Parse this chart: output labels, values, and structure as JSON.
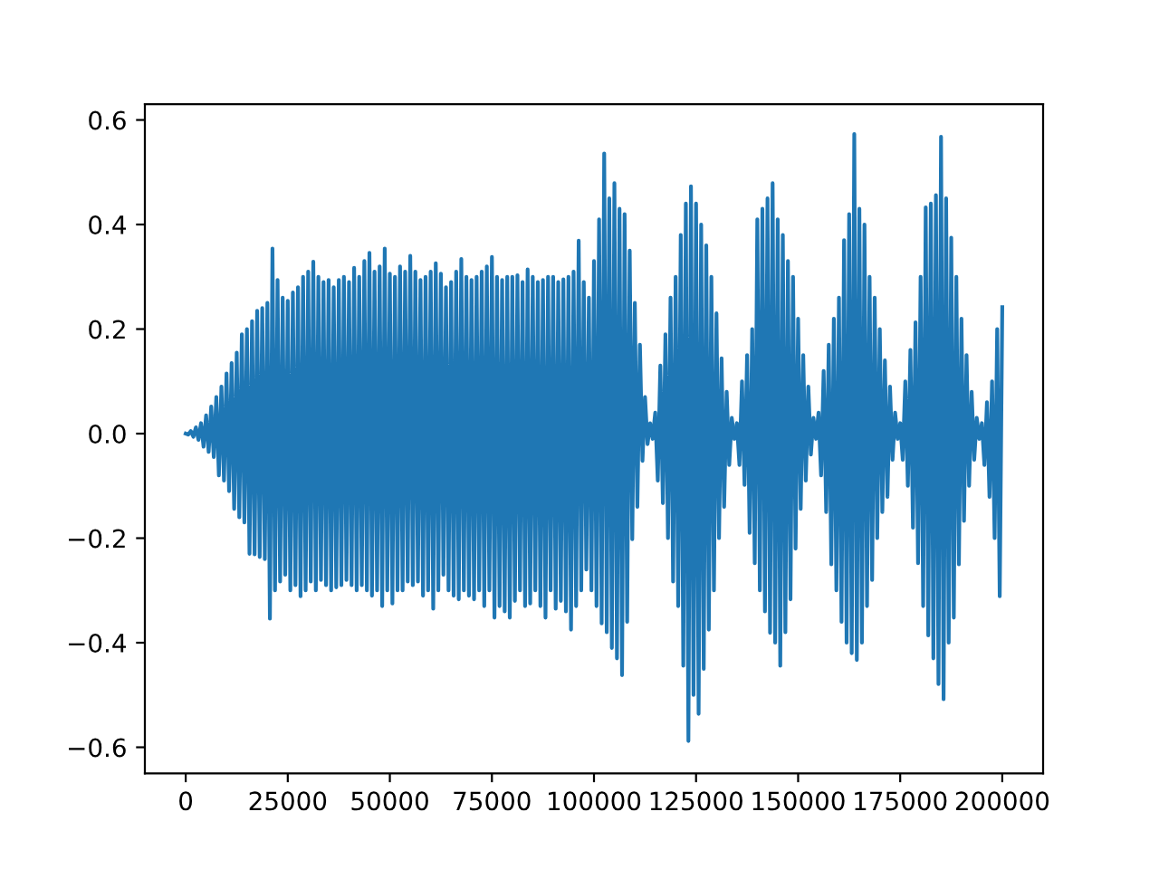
{
  "chart_data": {
    "type": "line",
    "x": [
      0,
      625,
      1250,
      1875,
      2500,
      3125,
      3750,
      4375,
      5000,
      5625,
      6250,
      6875,
      7500,
      8125,
      8750,
      9375,
      10000,
      10625,
      11250,
      11875,
      12500,
      13125,
      13750,
      14375,
      15000,
      15625,
      16250,
      16875,
      17500,
      18125,
      18750,
      19375,
      20000,
      20625,
      21250,
      21875,
      22500,
      23125,
      23750,
      24375,
      25000,
      25625,
      26250,
      26875,
      27500,
      28125,
      28750,
      29375,
      30000,
      30625,
      31250,
      31875,
      32500,
      33125,
      33750,
      34375,
      35000,
      35625,
      36250,
      36875,
      37500,
      38125,
      38750,
      39375,
      40000,
      40625,
      41250,
      41875,
      42500,
      43125,
      43750,
      44375,
      45000,
      45625,
      46250,
      46875,
      47500,
      48125,
      48750,
      49375,
      50000,
      50625,
      51250,
      51875,
      52500,
      53125,
      53750,
      54375,
      55000,
      55625,
      56250,
      56875,
      57500,
      58125,
      58750,
      59375,
      60000,
      60625,
      61250,
      61875,
      62500,
      63125,
      63750,
      64375,
      65000,
      65625,
      66250,
      66875,
      67500,
      68125,
      68750,
      69375,
      70000,
      70625,
      71250,
      71875,
      72500,
      73125,
      73750,
      74375,
      75000,
      75625,
      76250,
      76875,
      77500,
      78125,
      78750,
      79375,
      80000,
      80625,
      81250,
      81875,
      82500,
      83125,
      83750,
      84375,
      85000,
      85625,
      86250,
      86875,
      87500,
      88125,
      88750,
      89375,
      90000,
      90625,
      91250,
      91875,
      92500,
      93125,
      93750,
      94375,
      95000,
      95625,
      96250,
      96875,
      97500,
      98125,
      98750,
      99375,
      100000,
      100625,
      101250,
      101875,
      102500,
      103125,
      103750,
      104375,
      105000,
      105625,
      106250,
      106875,
      107500,
      108125,
      108750,
      109375,
      110000,
      110625,
      111250,
      111875,
      112500,
      113125,
      113750,
      114375,
      115000,
      115625,
      116250,
      116875,
      117500,
      118125,
      118750,
      119375,
      120000,
      120625,
      121250,
      121875,
      122500,
      123125,
      123750,
      124375,
      125000,
      125625,
      126250,
      126875,
      127500,
      128125,
      128750,
      129375,
      130000,
      130625,
      131250,
      131875,
      132500,
      133125,
      133750,
      134375,
      135000,
      135625,
      136250,
      136875,
      137500,
      138125,
      138750,
      139375,
      140000,
      140625,
      141250,
      141875,
      142500,
      143125,
      143750,
      144375,
      145000,
      145625,
      146250,
      146875,
      147500,
      148125,
      148750,
      149375,
      150000,
      150625,
      151250,
      151875,
      152500,
      153125,
      153750,
      154375,
      155000,
      155625,
      156250,
      156875,
      157500,
      158125,
      158750,
      159375,
      160000,
      160625,
      161250,
      161875,
      162500,
      163125,
      163750,
      164375,
      165000,
      165625,
      166250,
      166875,
      167500,
      168125,
      168750,
      169375,
      170000,
      170625,
      171250,
      171875,
      172500,
      173125,
      173750,
      174375,
      175000,
      175625,
      176250,
      176875,
      177500,
      178125,
      178750,
      179375,
      180000,
      180625,
      181250,
      181875,
      182500,
      183125,
      183750,
      184375,
      185000,
      185625,
      186250,
      186875,
      187500,
      188125,
      188750,
      189375,
      190000,
      190625,
      191250,
      191875,
      192500,
      193125,
      193750,
      194375,
      195000,
      195625,
      196250,
      196875,
      197500,
      198125,
      198750,
      199375,
      200000
    ],
    "series": [
      {
        "color": "#1f77b4",
        "values": [
          0,
          -0.002,
          0.005,
          -0.006,
          0.012,
          -0.012,
          0.02,
          -0.025,
          0.035,
          -0.035,
          0.052,
          -0.045,
          0.07,
          -0.08,
          0.09,
          -0.09,
          0.115,
          -0.11,
          0.135,
          -0.144,
          0.155,
          -0.16,
          0.19,
          -0.17,
          0.2,
          -0.23,
          0.215,
          -0.231,
          0.235,
          -0.236,
          0.24,
          -0.24,
          0.25,
          -0.354,
          0.354,
          -0.3,
          0.294,
          -0.283,
          0.26,
          -0.27,
          0.254,
          -0.3,
          0.27,
          -0.29,
          0.28,
          -0.311,
          0.3,
          -0.3,
          0.31,
          -0.283,
          0.329,
          -0.3,
          0.3,
          -0.28,
          0.29,
          -0.29,
          0.294,
          -0.3,
          0.28,
          -0.294,
          0.294,
          -0.29,
          0.3,
          -0.28,
          0.29,
          -0.29,
          0.317,
          -0.3,
          0.3,
          -0.29,
          0.33,
          -0.3,
          0.346,
          -0.31,
          0.31,
          -0.3,
          0.32,
          -0.33,
          0.354,
          -0.3,
          0.306,
          -0.325,
          0.3,
          -0.3,
          0.32,
          -0.3,
          0.31,
          -0.283,
          0.34,
          -0.29,
          0.31,
          -0.283,
          0.294,
          -0.31,
          0.3,
          -0.3,
          0.31,
          -0.335,
          0.326,
          -0.3,
          0.306,
          -0.27,
          0.28,
          -0.3,
          0.29,
          -0.31,
          0.31,
          -0.317,
          0.334,
          -0.3,
          0.3,
          -0.31,
          0.294,
          -0.317,
          0.3,
          -0.3,
          0.31,
          -0.33,
          0.32,
          -0.3,
          0.338,
          -0.352,
          0.3,
          -0.33,
          0.294,
          -0.34,
          0.3,
          -0.352,
          0.3,
          -0.32,
          0.303,
          -0.3,
          0.29,
          -0.33,
          0.314,
          -0.325,
          0.3,
          -0.3,
          0.29,
          -0.33,
          0.294,
          -0.352,
          0.3,
          -0.3,
          0.3,
          -0.335,
          0.29,
          -0.32,
          0.295,
          -0.34,
          0.3,
          -0.375,
          0.31,
          -0.33,
          0.369,
          -0.3,
          0.29,
          -0.26,
          0.26,
          -0.3,
          0.33,
          -0.33,
          0.41,
          -0.363,
          0.536,
          -0.38,
          0.45,
          -0.41,
          0.479,
          -0.43,
          0.43,
          -0.462,
          0.42,
          -0.36,
          0.35,
          -0.202,
          0.25,
          -0.14,
          0.17,
          -0.052,
          0.07,
          -0.02,
          0.02,
          -0.01,
          0.04,
          -0.09,
          0.13,
          -0.133,
          0.19,
          -0.2,
          0.26,
          -0.283,
          0.3,
          -0.33,
          0.38,
          -0.444,
          0.44,
          -0.588,
          0.473,
          -0.5,
          0.44,
          -0.536,
          0.4,
          -0.45,
          0.36,
          -0.375,
          0.3,
          -0.3,
          0.23,
          -0.2,
          0.144,
          -0.14,
          0.08,
          -0.06,
          0.03,
          -0.01,
          0.02,
          -0.06,
          0.1,
          -0.098,
          0.15,
          -0.19,
          0.2,
          -0.248,
          0.41,
          -0.3,
          0.43,
          -0.34,
          0.45,
          -0.381,
          0.479,
          -0.4,
          0.41,
          -0.444,
          0.38,
          -0.38,
          0.33,
          -0.317,
          0.3,
          -0.22,
          0.22,
          -0.144,
          0.15,
          -0.09,
          0.09,
          -0.04,
          0.03,
          -0.01,
          0.04,
          -0.08,
          0.12,
          -0.15,
          0.17,
          -0.25,
          0.22,
          -0.3,
          0.26,
          -0.36,
          0.37,
          -0.4,
          0.42,
          -0.42,
          0.573,
          -0.433,
          0.43,
          -0.4,
          0.4,
          -0.33,
          0.3,
          -0.28,
          0.26,
          -0.2,
          0.2,
          -0.15,
          0.14,
          -0.121,
          0.09,
          -0.05,
          0.04,
          -0.01,
          0.02,
          -0.05,
          0.1,
          -0.1,
          0.16,
          -0.18,
          0.213,
          -0.248,
          0.3,
          -0.33,
          0.433,
          -0.386,
          0.44,
          -0.43,
          0.456,
          -0.479,
          0.568,
          -0.508,
          0.45,
          -0.4,
          0.375,
          -0.352,
          0.3,
          -0.25,
          0.22,
          -0.167,
          0.15,
          -0.1,
          0.08,
          -0.05,
          0.03,
          -0.01,
          0.02,
          -0.06,
          0.06,
          -0.121,
          0.1,
          -0.2,
          0.2,
          -0.311,
          0.242
        ]
      }
    ],
    "xlim": [
      -10000,
      210000
    ],
    "ylim": [
      -0.65,
      0.63
    ],
    "xticks": [
      0,
      25000,
      50000,
      75000,
      100000,
      125000,
      150000,
      175000,
      200000
    ],
    "yticks": [
      {
        "value": -0.6,
        "label": "−0.6"
      },
      {
        "value": -0.4,
        "label": "−0.4"
      },
      {
        "value": -0.2,
        "label": "−0.2"
      },
      {
        "value": 0,
        "label": "0.0"
      },
      {
        "value": 0.2,
        "label": "0.2"
      },
      {
        "value": 0.4,
        "label": "0.4"
      },
      {
        "value": 0.6,
        "label": "0.6"
      }
    ],
    "grid": false
  }
}
